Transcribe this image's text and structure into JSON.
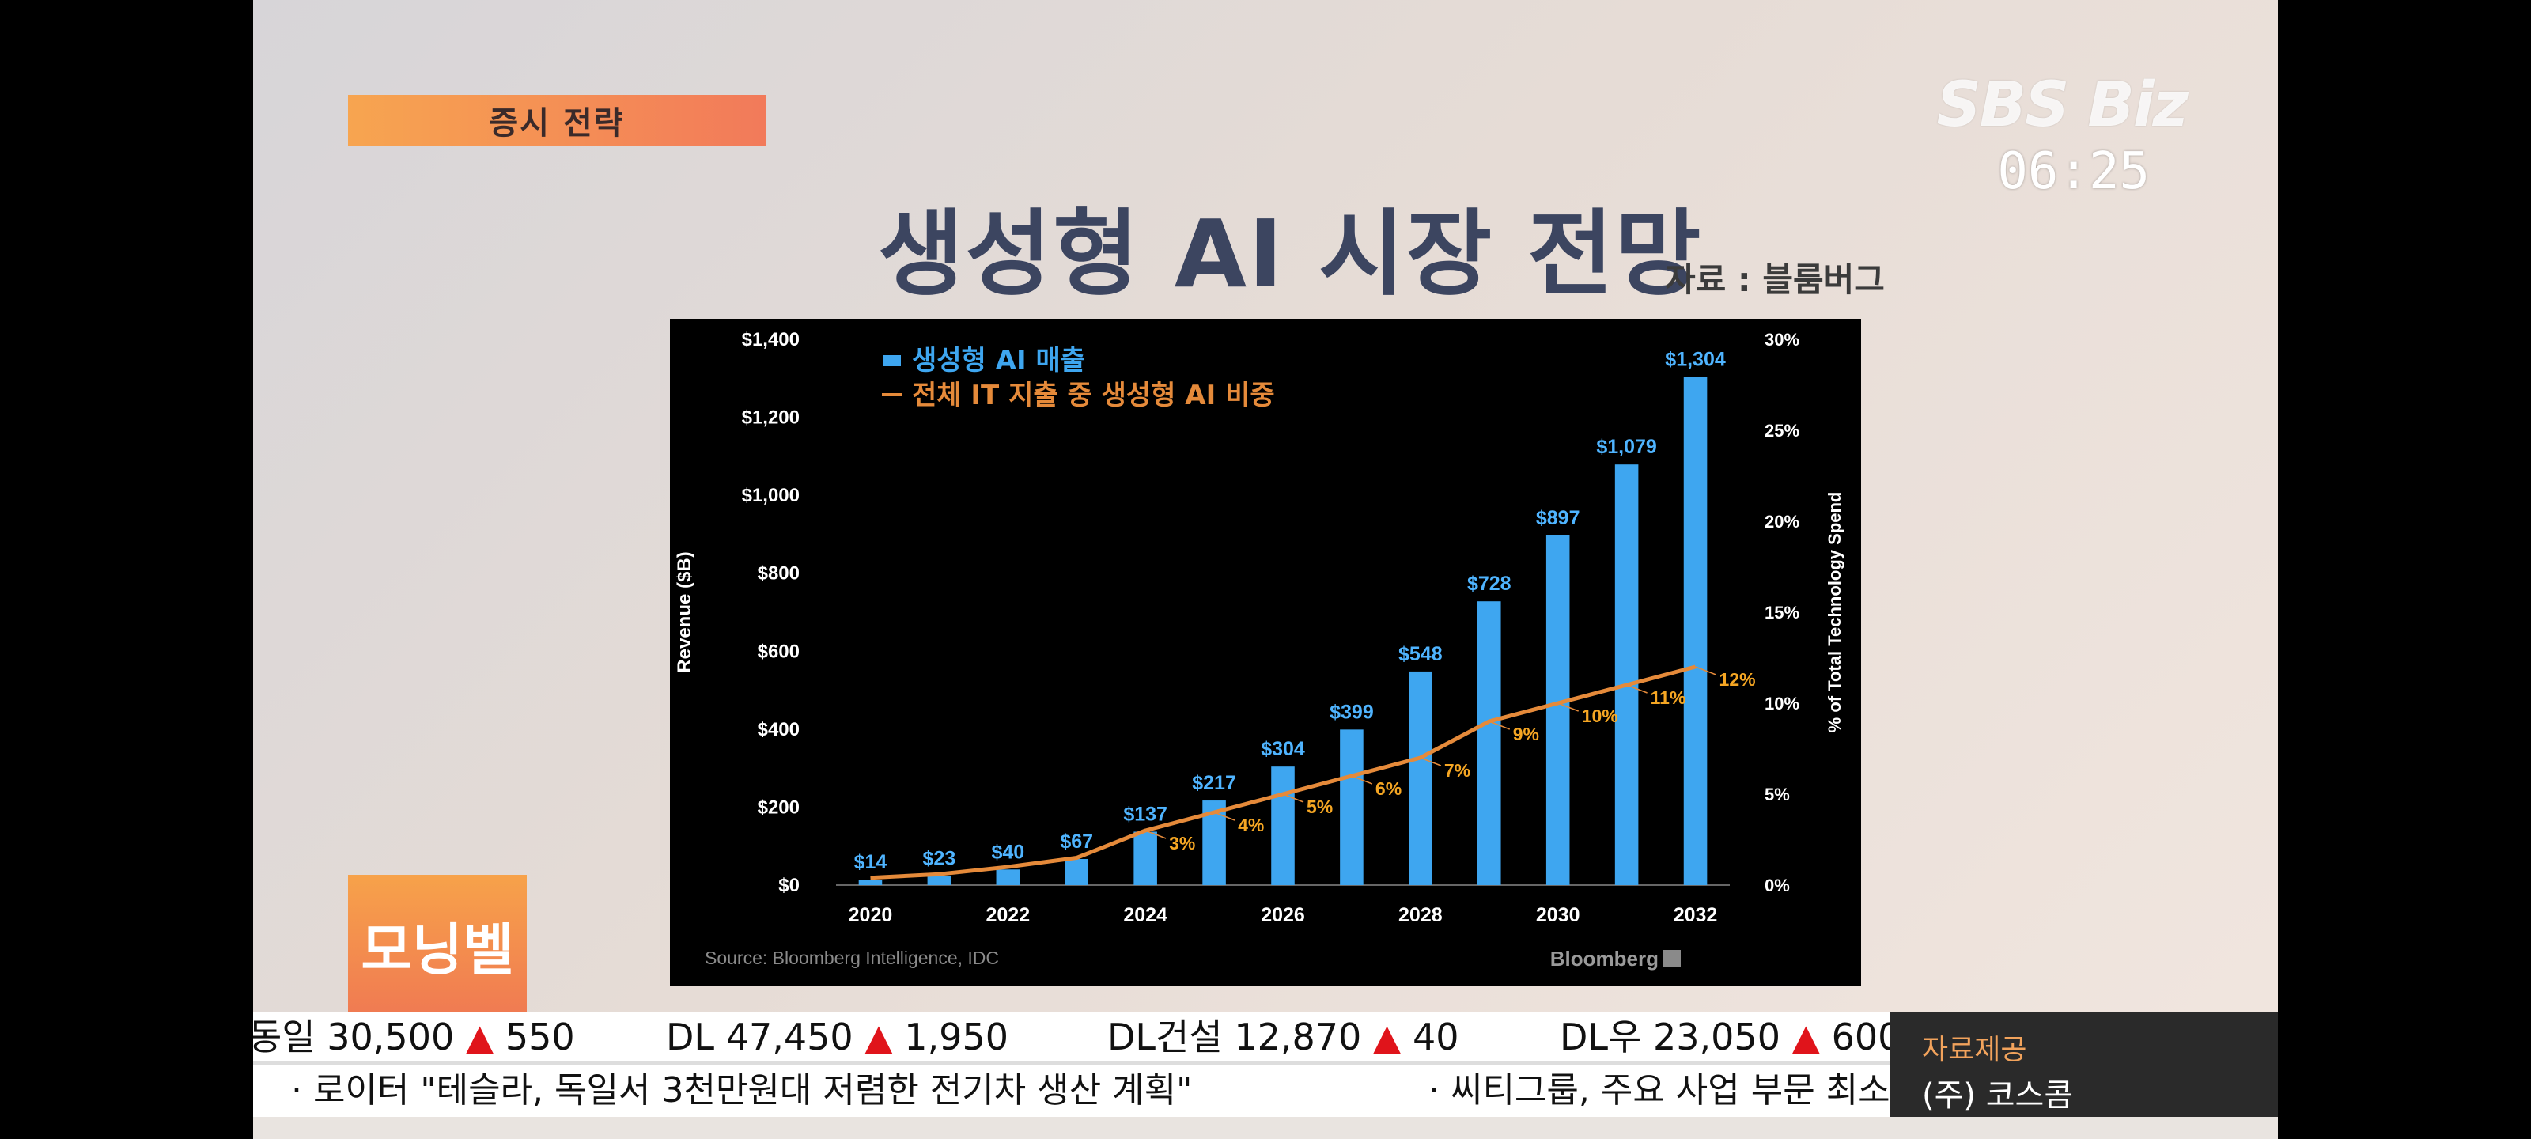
{
  "broadcast": {
    "segment": "증시 전략",
    "logo": "SBS Biz",
    "clock": "06:25",
    "title": "생성형 AI 시장 전망",
    "source_note": "자료 : 블룸버그",
    "program": "모닝벨"
  },
  "ticker": [
    {
      "name": "동일",
      "price": "30,500",
      "arrow": "▲",
      "change": "550"
    },
    {
      "name": "DL",
      "price": "47,450",
      "arrow": "▲",
      "change": "1,950"
    },
    {
      "name": "DL건설",
      "price": "12,870",
      "arrow": "▲",
      "change": "40"
    },
    {
      "name": "DL우",
      "price": "23,050",
      "arrow": "▲",
      "change": "600"
    }
  ],
  "news": [
    "· 로이터 \"테슬라, 독일서 3천만원대 저렴한 전기차 생산 계획\"",
    "· 씨티그룹, 주요 사업 부문 최소"
  ],
  "provider": {
    "label": "자료제공",
    "name": "(주) 코스콤"
  },
  "colors": {
    "bar": "#3ea6f0",
    "line": "#e58a3a",
    "accent": "#f27a5a"
  },
  "chart_data": {
    "type": "bar",
    "x": [
      2020,
      2021,
      2022,
      2023,
      2024,
      2025,
      2026,
      2027,
      2028,
      2029,
      2030,
      2031,
      2032
    ],
    "x_tick_labels": [
      "2020",
      "2022",
      "2024",
      "2026",
      "2028",
      "2030",
      "2032"
    ],
    "series": [
      {
        "name": "생성형 AI 매출",
        "type": "bar",
        "axis": "left",
        "values": [
          14,
          23,
          40,
          67,
          137,
          217,
          304,
          399,
          548,
          728,
          897,
          1079,
          1304
        ],
        "labels": [
          "$14",
          "$23",
          "$40",
          "$67",
          "$137",
          "$217",
          "$304",
          "$399",
          "$548",
          "$728",
          "$897",
          "$1,079",
          "$1,304"
        ]
      },
      {
        "name": "전체 IT 지출 중 생성형 AI 비중",
        "type": "line",
        "axis": "right",
        "values": [
          0.4,
          0.6,
          1,
          1.5,
          3,
          4,
          5,
          6,
          7,
          9,
          10,
          11,
          12
        ],
        "labels": [
          null,
          null,
          null,
          null,
          "3%",
          "4%",
          "5%",
          "6%",
          "7%",
          "9%",
          "10%",
          "11%",
          "12%"
        ]
      }
    ],
    "ylabel": "Revenue ($B)",
    "ylim": [
      0,
      1400
    ],
    "y_ticks": [
      "$0",
      "$200",
      "$400",
      "$600",
      "$800",
      "$1,000",
      "$1,200",
      "$1,400"
    ],
    "y2label": "% of Total Technology Spend",
    "y2lim": [
      0,
      30
    ],
    "y2_ticks": [
      "0%",
      "5%",
      "10%",
      "15%",
      "20%",
      "25%",
      "30%"
    ],
    "legend_position": "top-left",
    "grid": false,
    "source": "Source: Bloomberg Intelligence, IDC",
    "brand": "Bloomberg"
  }
}
